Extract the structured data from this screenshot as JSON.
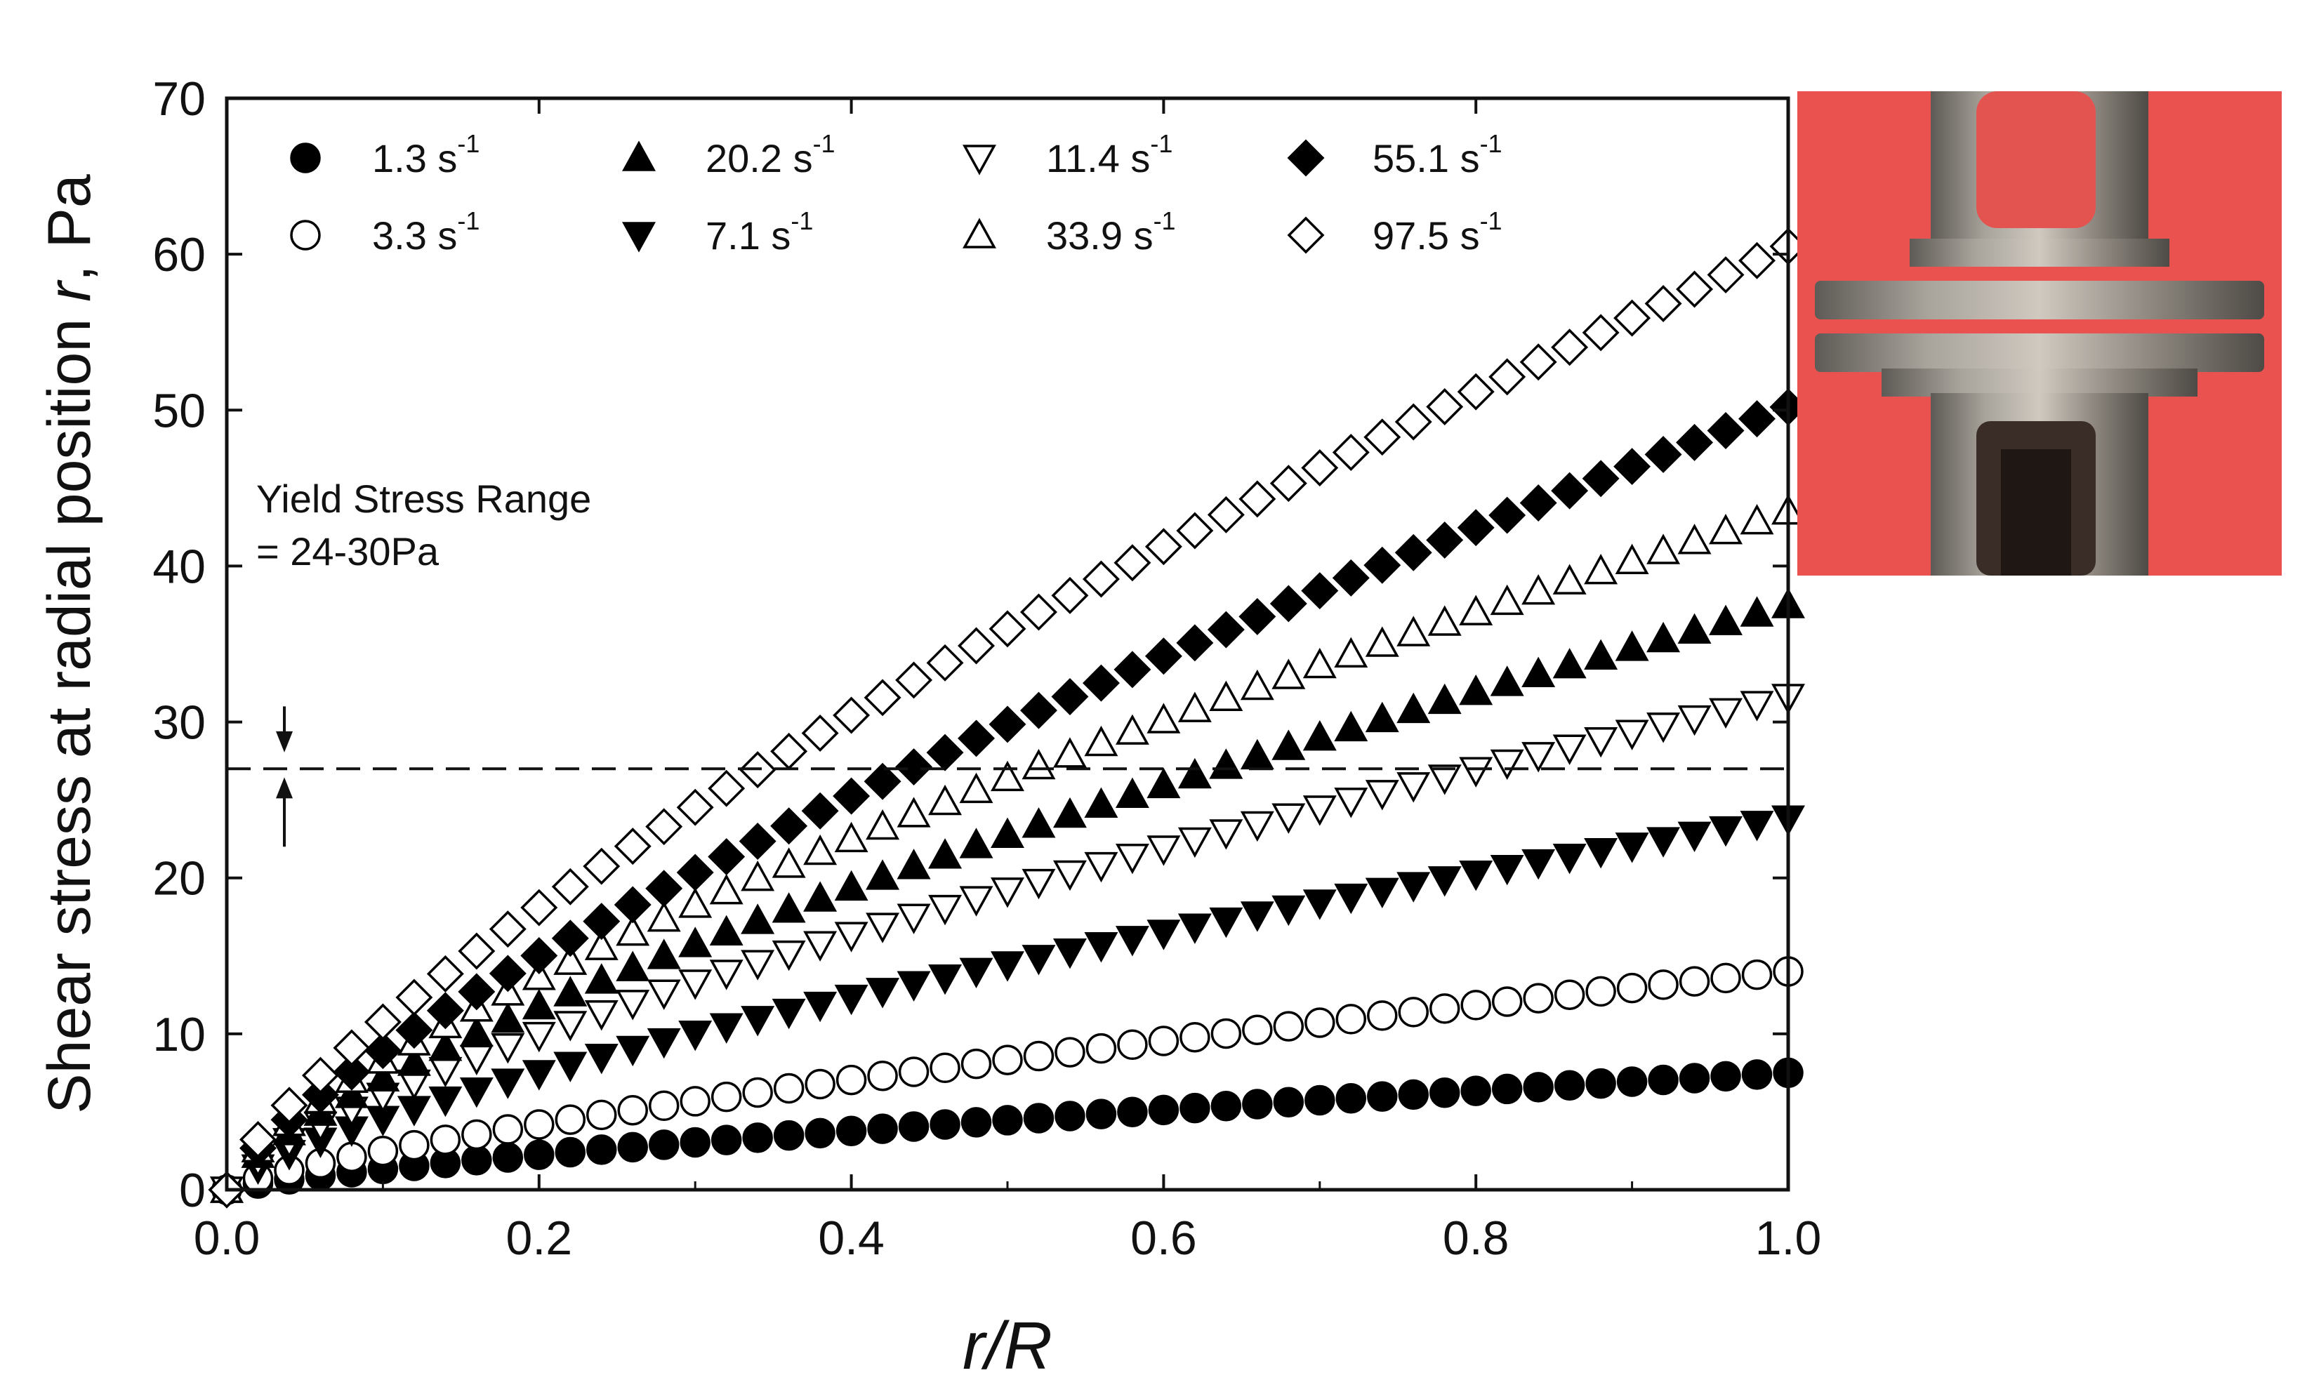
{
  "chart_data": {
    "type": "scatter",
    "title": "",
    "xlabel_italic": "r",
    "xlabel_rest": "/R",
    "ylabel_prefix": "Shear stress at radial position ",
    "ylabel_italic": "r",
    "ylabel_suffix": ", Pa",
    "xlim": [
      0.0,
      1.0
    ],
    "ylim": [
      0,
      70
    ],
    "x_ticks": [
      "0.0",
      "0.2",
      "0.4",
      "0.6",
      "0.8",
      "1.0"
    ],
    "y_ticks": [
      "0",
      "10",
      "20",
      "30",
      "40",
      "50",
      "60",
      "70"
    ],
    "annotation_line1": "Yield Stress Range",
    "annotation_line2": "= 24-30Pa",
    "yield_stress_line": 27,
    "arrow_down_from": 31,
    "arrow_down_to": 28.5,
    "arrow_up_from": 22,
    "arrow_up_to": 26,
    "legend_unit": "s",
    "legend_exponent": "-1",
    "series": [
      {
        "name": "1.3",
        "marker": "circle",
        "filled": true,
        "tau_wall": 7.5,
        "n": 0.75
      },
      {
        "name": "3.3",
        "marker": "circle",
        "filled": false,
        "tau_wall": 14,
        "n": 0.75
      },
      {
        "name": "7.1",
        "marker": "triangle-down",
        "filled": true,
        "tau_wall": 23.8,
        "n": 0.72
      },
      {
        "name": "11.4",
        "marker": "triangle-down",
        "filled": false,
        "tau_wall": 31.6,
        "n": 0.72
      },
      {
        "name": "20.2",
        "marker": "triangle-up",
        "filled": true,
        "tau_wall": 37.5,
        "n": 0.72
      },
      {
        "name": "33.9",
        "marker": "triangle-up",
        "filled": false,
        "tau_wall": 43.5,
        "n": 0.72
      },
      {
        "name": "55.1",
        "marker": "diamond",
        "filled": true,
        "tau_wall": 50.2,
        "n": 0.75
      },
      {
        "name": "97.5",
        "marker": "diamond",
        "filled": false,
        "tau_wall": 60.5,
        "n": 0.75
      }
    ],
    "legend_order": [
      0,
      4,
      3,
      6,
      1,
      2,
      5,
      7
    ],
    "point_spacing": 0.02
  },
  "photo": {
    "description_icon": "parallel-plate-geometry-icon",
    "background_color": "#e9524f"
  }
}
